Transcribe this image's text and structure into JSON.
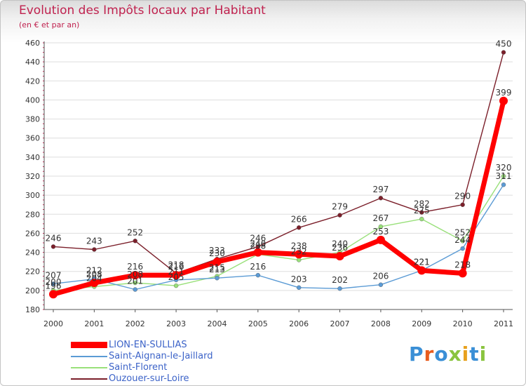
{
  "header": {
    "title": "Evolution des Impôts locaux par Habitant",
    "subtitle": "(en € et par an)"
  },
  "logo": {
    "text": "Proxiti",
    "colors": [
      "#3a8fd6",
      "#e85c1e",
      "#3a8fd6",
      "#8ac43f",
      "#e8a11e",
      "#3a8fd6",
      "#8ac43f"
    ]
  },
  "chart_data": {
    "type": "line",
    "title": "Evolution des Impôts locaux par Habitant",
    "subtitle": "(en € et par an)",
    "xlabel": "",
    "ylabel": "",
    "x": [
      "2000",
      "2001",
      "2002",
      "2003",
      "2004",
      "2005",
      "2006",
      "2007",
      "2008",
      "2009",
      "2010",
      "2011"
    ],
    "ylim": [
      180,
      460
    ],
    "yticks": [
      180,
      200,
      220,
      240,
      260,
      280,
      300,
      320,
      340,
      360,
      380,
      400,
      420,
      440,
      460
    ],
    "grid": "horizontal",
    "legend_position": "bottom-left",
    "series": [
      {
        "name": "LION-EN-SULLIAS",
        "values": [
          196,
          208,
          216,
          216,
          230,
          240,
          238,
          236,
          253,
          221,
          218,
          399
        ],
        "labels": [
          "196",
          "208",
          "216",
          "216",
          "230",
          "240",
          "238",
          "236",
          "253",
          "221",
          "218",
          "399"
        ],
        "color": "#ff0000"
      },
      {
        "name": "Saint-Aignan-le-Jaillard",
        "values": [
          207,
          212,
          201,
          211,
          213,
          216,
          203,
          202,
          206,
          221,
          244,
          311
        ],
        "labels": [
          "207",
          "212",
          "201",
          "211",
          "213",
          "216",
          "203",
          "202",
          "206",
          "221",
          "244",
          "311"
        ],
        "color": "#5b9bd5"
      },
      {
        "name": "Saint-Florent",
        "values": [
          200,
          204,
          208,
          205,
          215,
          238,
          232,
          240,
          267,
          275,
          252,
          320
        ],
        "labels": [
          "200",
          "204",
          "208",
          "205",
          "215",
          "238",
          "232",
          "240",
          "267",
          "275",
          "252",
          "320"
        ],
        "color": "#99e07a"
      },
      {
        "name": "Ouzouer-sur-Loire",
        "values": [
          246,
          243,
          252,
          218,
          233,
          246,
          266,
          279,
          297,
          282,
          290,
          450
        ],
        "labels": [
          "246",
          "243",
          "252",
          "218",
          "233",
          "246",
          "266",
          "279",
          "297",
          "282",
          "290",
          "450"
        ],
        "color": "#7b1f2a"
      }
    ]
  }
}
